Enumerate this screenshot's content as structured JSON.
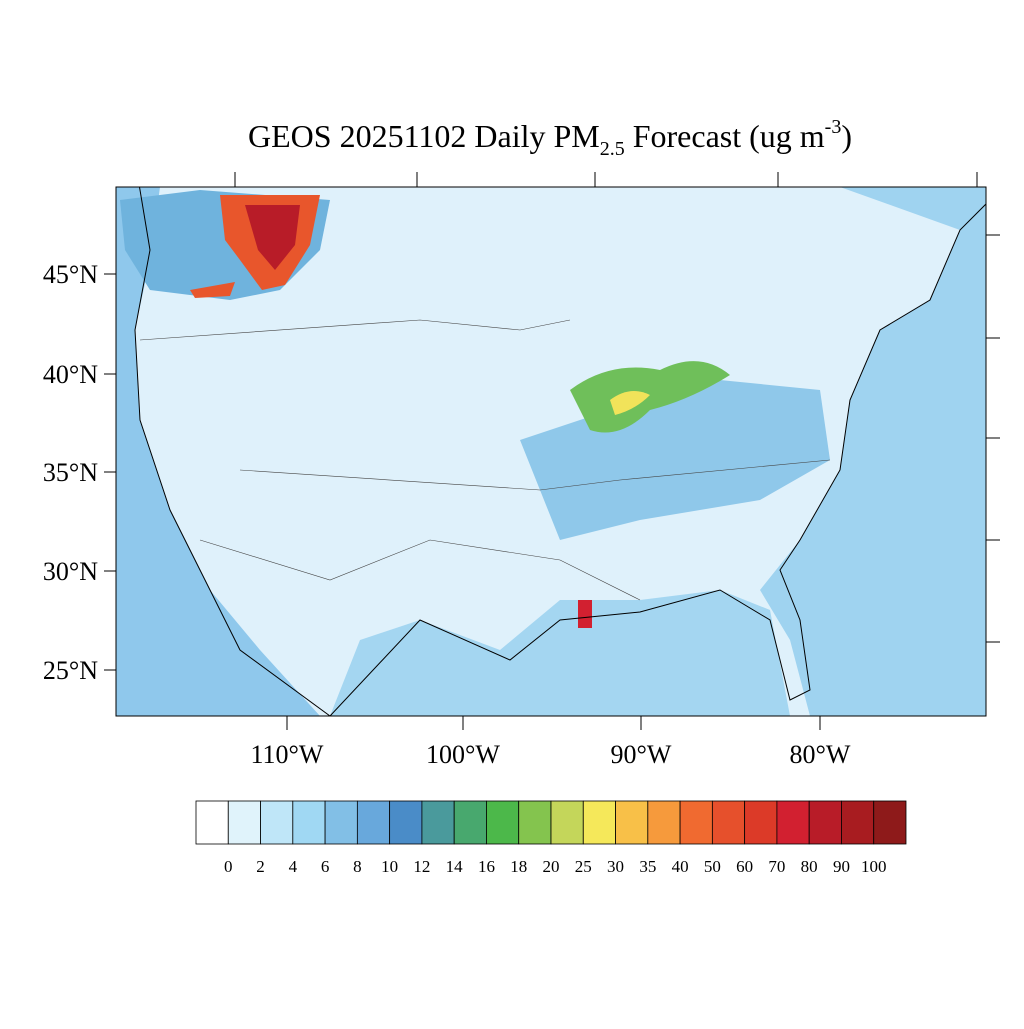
{
  "title": {
    "main": "GEOS 20251102 Daily PM",
    "subscript": "2.5",
    "rest": " Forecast (ug m",
    "superscript": "-3",
    "close": ")"
  },
  "lat_labels": [
    "45°N",
    "40°N",
    "35°N",
    "30°N",
    "25°N"
  ],
  "lon_labels": [
    "110°W",
    "100°W",
    "90°W",
    "80°W"
  ],
  "colorbar": {
    "levels": [
      0,
      2,
      4,
      6,
      8,
      10,
      12,
      14,
      16,
      18,
      20,
      25,
      30,
      35,
      40,
      50,
      60,
      70,
      80,
      90,
      100
    ],
    "colors": [
      "#ffffff",
      "#e0f3fb",
      "#bfe6f8",
      "#a0d8f3",
      "#82bfe6",
      "#68a8dc",
      "#4a8cc8",
      "#4a9a9c",
      "#48a86e",
      "#4cb84a",
      "#84c44e",
      "#c4d65a",
      "#f5e85a",
      "#f8c048",
      "#f69a3c",
      "#f06a30",
      "#e6502c",
      "#dc3a28",
      "#d22030",
      "#b81c28",
      "#a81c20",
      "#8e1a1a"
    ]
  }
}
